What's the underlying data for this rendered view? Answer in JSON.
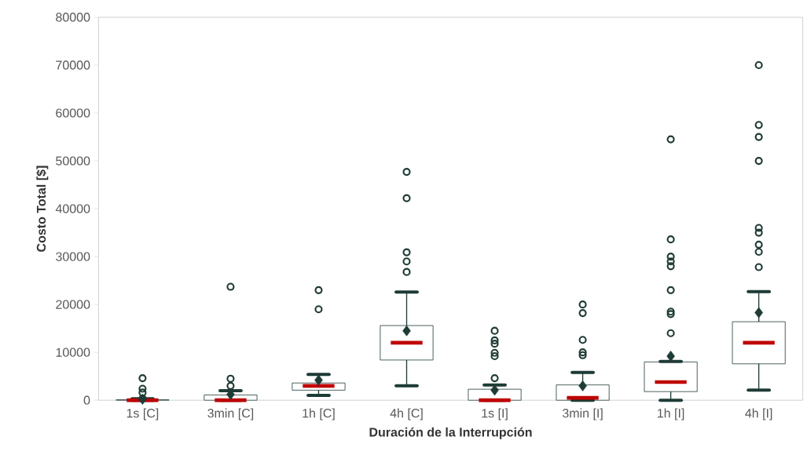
{
  "chart_data": {
    "type": "box",
    "xlabel": "Duración de la Interrupción",
    "ylabel": "Costo Total [$]",
    "categories": [
      "1s [C]",
      "3min [C]",
      "1h [C]",
      "4h [C]",
      "1s [I]",
      "3min [I]",
      "1h [I]",
      "4h [I]"
    ],
    "ylim": [
      0,
      80000
    ],
    "yticks": [
      0,
      10000,
      20000,
      30000,
      40000,
      50000,
      60000,
      70000,
      80000
    ],
    "series": [
      {
        "color": "#1e3b36",
        "boxes": [
          {
            "low": 0,
            "q1": 0,
            "median": 0,
            "q3": 100,
            "high": 300,
            "mean": 200,
            "outliers": [
              4600,
              2400,
              1600,
              400
            ]
          },
          {
            "low": 0,
            "q1": 0,
            "median": 0,
            "q3": 1100,
            "high": 2000,
            "mean": 1200,
            "outliers": [
              23700,
              4500,
              3000
            ]
          },
          {
            "low": 1000,
            "q1": 2100,
            "median": 3000,
            "q3": 3600,
            "high": 5400,
            "mean": 4200,
            "outliers": [
              23000,
              19000
            ]
          },
          {
            "low": 3000,
            "q1": 8400,
            "median": 12000,
            "q3": 15600,
            "high": 22600,
            "mean": 14500,
            "outliers": [
              47700,
              42200,
              30900,
              29000,
              26800
            ]
          },
          {
            "low": 0,
            "q1": 0,
            "median": 0,
            "q3": 2300,
            "high": 3200,
            "mean": 2100,
            "outliers": [
              14500,
              12500,
              11800,
              9900,
              9200,
              4600
            ]
          },
          {
            "low": 0,
            "q1": 0,
            "median": 500,
            "q3": 3200,
            "high": 5800,
            "mean": 3000,
            "outliers": [
              20000,
              18200,
              12600,
              10000,
              9400
            ]
          },
          {
            "low": 0,
            "q1": 1800,
            "median": 3800,
            "q3": 8000,
            "high": 8100,
            "mean": 9200,
            "outliers": [
              54500,
              33600,
              30000,
              29000,
              28000,
              23000,
              18500,
              18000,
              14000
            ]
          },
          {
            "low": 2100,
            "q1": 7600,
            "median": 12000,
            "q3": 16400,
            "high": 22700,
            "mean": 18300,
            "outliers": [
              70000,
              57500,
              55000,
              50000,
              36000,
              35000,
              32500,
              31000,
              27800
            ]
          }
        ]
      }
    ]
  }
}
